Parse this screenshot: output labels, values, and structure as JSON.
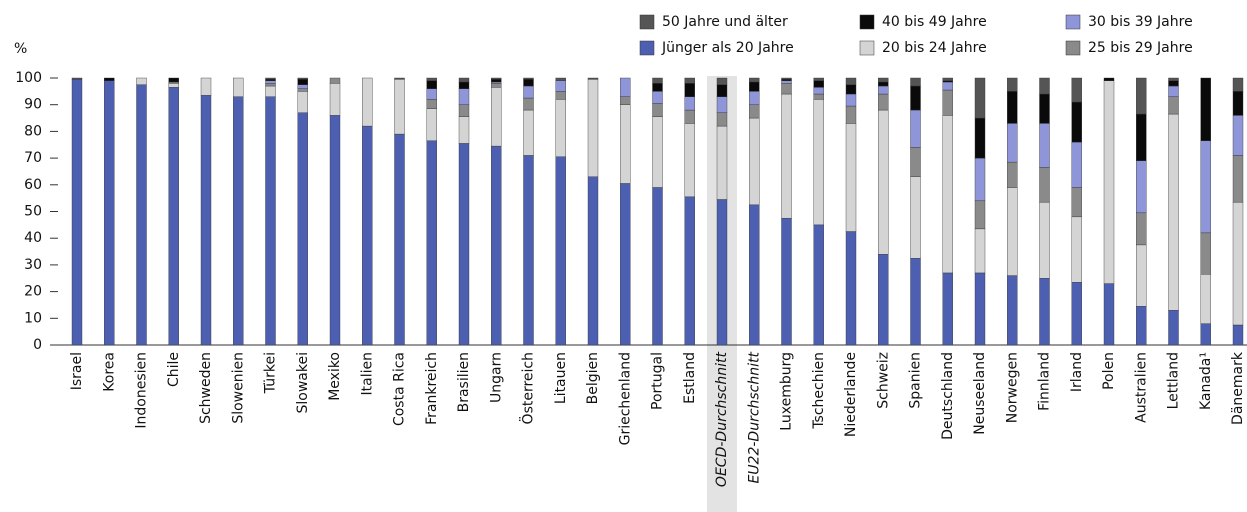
{
  "chart_data": {
    "type": "stacked_bar",
    "ylabel": "%",
    "categories": [
      "Israel",
      "Korea",
      "Indonesien",
      "Chile",
      "Schweden",
      "Slowenien",
      "Türkei",
      "Slowakei",
      "Mexiko",
      "Italien",
      "Costa Rica",
      "Frankreich",
      "Brasilien",
      "Ungarn",
      "Österreich",
      "Litauen",
      "Belgien",
      "Griechenland",
      "Portugal",
      "Estland",
      "OECD-Durchschnitt",
      "EU22-Durchschnitt",
      "Luxemburg",
      "Tschechien",
      "Niederlande",
      "Schweiz",
      "Spanien",
      "Deutschland",
      "Neuseeland",
      "Norwegen",
      "Finnland",
      "Irland",
      "Polen",
      "Australien",
      "Lettland",
      "Kanada¹",
      "Dänemark"
    ],
    "highlight_index": 20,
    "italic_indices": [
      20,
      21
    ],
    "series": [
      {
        "name": "Jünger als 20 Jahre",
        "color": "#4c5fb0",
        "values": [
          99.5,
          99,
          97.5,
          96.5,
          93.5,
          93,
          93,
          87,
          86,
          82,
          79,
          76.5,
          75.5,
          74.5,
          71,
          70.5,
          63,
          60.5,
          59,
          55.5,
          54.5,
          52.5,
          47.5,
          45,
          42.5,
          34,
          32.5,
          27,
          27,
          26,
          25,
          23.5,
          23,
          14.5,
          13,
          8,
          7.5
        ]
      },
      {
        "name": "20 bis 24 Jahre",
        "color": "#d4d4d4",
        "values": [
          0,
          0,
          2.5,
          1.5,
          6.5,
          7,
          4,
          8,
          12,
          18,
          20.5,
          12,
          10,
          22,
          17,
          21.5,
          36.5,
          29.5,
          26.5,
          27.5,
          27.5,
          32.5,
          46.5,
          47,
          40.5,
          54,
          30.5,
          59,
          16.5,
          33,
          28.5,
          24.5,
          76,
          23,
          73.5,
          18.5,
          46
        ]
      },
      {
        "name": "25 bis 29 Jahre",
        "color": "#8a8a8a",
        "values": [
          0,
          0,
          0,
          0.5,
          0,
          0,
          1,
          1,
          2,
          0,
          0,
          3.5,
          4.5,
          1.5,
          4.5,
          3,
          0,
          3,
          5,
          5,
          5,
          5,
          4,
          2,
          6.5,
          6,
          11,
          9.5,
          10.5,
          9.5,
          13,
          11,
          0,
          12,
          6.5,
          15.5,
          17.5
        ]
      },
      {
        "name": "30 bis 39 Jahre",
        "color": "#8e95d8",
        "values": [
          0,
          0,
          0,
          0,
          0,
          0,
          1,
          1.5,
          0,
          0,
          0,
          4,
          6,
          0.5,
          4.5,
          4,
          0,
          7,
          4.5,
          5,
          6,
          5,
          1,
          2.5,
          4.5,
          3,
          14,
          3,
          16,
          14.5,
          16.5,
          17,
          0,
          19.5,
          4,
          34.5,
          15
        ]
      },
      {
        "name": "40 bis 49 Jahre",
        "color": "#0a0a0a",
        "values": [
          0,
          1,
          0,
          1.5,
          0,
          0,
          0.5,
          2,
          0,
          0,
          0,
          3,
          2.5,
          1,
          2.5,
          0,
          0,
          0,
          3,
          5,
          4.5,
          3.5,
          0.5,
          2.5,
          3.5,
          1.5,
          9,
          0.5,
          15,
          12,
          11,
          15,
          1,
          17.5,
          2,
          23.5,
          9
        ]
      },
      {
        "name": "50 Jahre und älter",
        "color": "#555555",
        "values": [
          0.5,
          0,
          0,
          0,
          0,
          0,
          0.5,
          0.5,
          0,
          0,
          0.5,
          1,
          1.5,
          0.5,
          0.5,
          1,
          0.5,
          0,
          2,
          2,
          2.5,
          1.5,
          0.5,
          1,
          2.5,
          1.5,
          3,
          1,
          15,
          5,
          6,
          9,
          0,
          13.5,
          1,
          0,
          5
        ]
      }
    ],
    "ylim": [
      0,
      100
    ],
    "yticks": [
      0,
      10,
      20,
      30,
      40,
      50,
      60,
      70,
      80,
      90,
      100
    ]
  }
}
